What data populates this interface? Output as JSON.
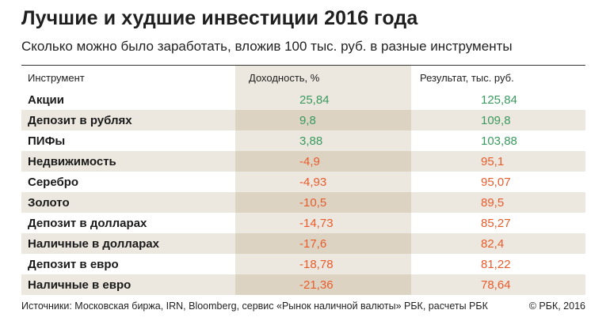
{
  "title": "Лучшие и худшие инвестиции 2016 года",
  "subtitle": "Сколько можно было заработать, вложив 100 тыс. руб. в разные инструменты",
  "header": {
    "instrument": "Инструмент",
    "yield": "Доходность, %",
    "result": "Результат, тыс. руб."
  },
  "colors": {
    "positive": "#3a9a5e",
    "negative": "#ea5b2a",
    "band": "#ece7df",
    "band_dark": "#dcd3c3"
  },
  "chart_data": {
    "type": "table",
    "title": "Лучшие и худшие инвестиции 2016 года",
    "subtitle": "Сколько можно было заработать, вложив 100 тыс. руб. в разные инструменты",
    "columns": [
      "Инструмент",
      "Доходность, %",
      "Результат, тыс. руб."
    ],
    "rows": [
      {
        "name": "Акции",
        "yield": "25,84",
        "result": "125,84",
        "sign": "pos"
      },
      {
        "name": "Депозит в рублях",
        "yield": "9,8",
        "result": "109,8",
        "sign": "pos"
      },
      {
        "name": "ПИФы",
        "yield": "3,88",
        "result": "103,88",
        "sign": "pos"
      },
      {
        "name": "Недвижимость",
        "yield": "-4,9",
        "result": "95,1",
        "sign": "neg"
      },
      {
        "name": "Серебро",
        "yield": "-4,93",
        "result": "95,07",
        "sign": "neg"
      },
      {
        "name": "Золото",
        "yield": "-10,5",
        "result": "89,5",
        "sign": "neg"
      },
      {
        "name": "Депозит в долларах",
        "yield": "-14,73",
        "result": "85,27",
        "sign": "neg"
      },
      {
        "name": "Наличные в долларах",
        "yield": "-17,6",
        "result": "82,4",
        "sign": "neg"
      },
      {
        "name": "Депозит в евро",
        "yield": "-18,78",
        "result": "81,22",
        "sign": "neg"
      },
      {
        "name": "Наличные в евро",
        "yield": "-21,36",
        "result": "78,64",
        "sign": "neg"
      }
    ]
  },
  "footer": {
    "source": "Источники: Московская биржа, IRN, Bloomberg, сервис «Рынок наличной валюты» РБК, расчеты РБК",
    "copyright": "© РБК, 2016"
  }
}
